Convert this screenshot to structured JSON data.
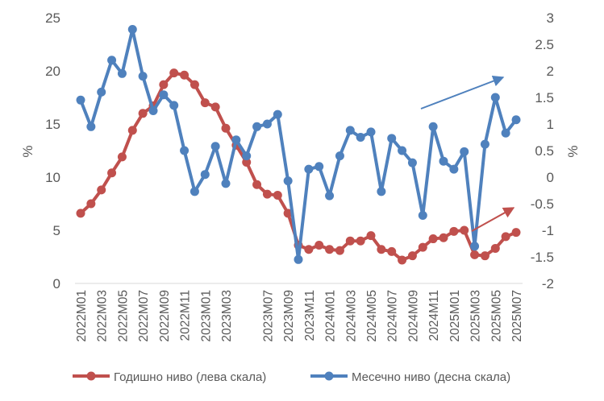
{
  "chart_data": {
    "type": "line",
    "y_left": {
      "label": "%",
      "ticks": [
        0,
        5,
        10,
        15,
        20,
        25
      ],
      "ylim": [
        0,
        25
      ]
    },
    "y_right": {
      "label": "%",
      "ticks": [
        -2,
        -1.5,
        -1,
        -0.5,
        0,
        0.5,
        1,
        1.5,
        2,
        2.5,
        3
      ],
      "ylim": [
        -2,
        3
      ]
    },
    "x": [
      "2022M01",
      "2022M02",
      "2022M03",
      "2022M04",
      "2022M05",
      "2022M06",
      "2022M07",
      "2022M08",
      "2022M09",
      "2022M10",
      "2022M11",
      "2022M12",
      "2023M01",
      "2023M02",
      "2023M03",
      "2023M04",
      "2023M05",
      "2023M06",
      "2023M07",
      "2023M08",
      "2023M09",
      "2023M10",
      "2023M11",
      "2023M12",
      "2024M01",
      "2024M02",
      "2024M03",
      "2024M04",
      "2024M05",
      "2024M06",
      "2024M07",
      "2024M08",
      "2024M09",
      "2024M10",
      "2024M11",
      "2024M12",
      "2025M01",
      "2025M02",
      "2025M03",
      "2025M04",
      "2025M05",
      "2025M06",
      "2025M07"
    ],
    "x_tick_labels": [
      "2022M01",
      "2022M03",
      "2022M05",
      "2022M07",
      "2022M09",
      "2022M11",
      "2023M01",
      "2023M03",
      "2023M07",
      "2023M09",
      "2023M11",
      "2024M01",
      "2024M03",
      "2024M05",
      "2024M07",
      "2024M09",
      "2024M11",
      "2025M01",
      "2025M03",
      "2025M05",
      "2025M07"
    ],
    "series": [
      {
        "name": "Годишно ниво (лева скала)",
        "axis": "left",
        "color": "#C0504D",
        "values": [
          6.6,
          7.5,
          8.8,
          10.4,
          11.9,
          14.4,
          16.0,
          16.7,
          18.7,
          19.8,
          19.6,
          18.7,
          17.0,
          16.6,
          14.6,
          13.0,
          11.4,
          9.3,
          8.4,
          8.3,
          6.6,
          3.6,
          3.2,
          3.6,
          3.2,
          3.1,
          4.0,
          4.0,
          4.5,
          3.2,
          3.0,
          2.2,
          2.6,
          3.4,
          4.2,
          4.3,
          4.9,
          5.0,
          2.7,
          2.6,
          3.3,
          4.4,
          4.8
        ]
      },
      {
        "name": "Месечно ниво (десна скала)",
        "axis": "right",
        "color": "#4F81BD",
        "values": [
          1.45,
          0.95,
          1.6,
          2.2,
          1.95,
          2.78,
          1.9,
          1.25,
          1.55,
          1.35,
          0.5,
          -0.27,
          0.05,
          0.58,
          -0.12,
          0.7,
          0.4,
          0.95,
          1.0,
          1.18,
          -0.07,
          -1.55,
          0.15,
          0.2,
          -0.35,
          0.4,
          0.88,
          0.75,
          0.85,
          -0.27,
          0.73,
          0.5,
          0.27,
          -0.72,
          0.95,
          0.3,
          0.15,
          0.48,
          -1.3,
          0.62,
          1.5,
          0.83,
          1.08
        ]
      }
    ],
    "annotations": [
      {
        "type": "arrow",
        "color": "#4F81BD"
      },
      {
        "type": "arrow",
        "color": "#C0504D"
      }
    ],
    "legend_position": "bottom"
  }
}
